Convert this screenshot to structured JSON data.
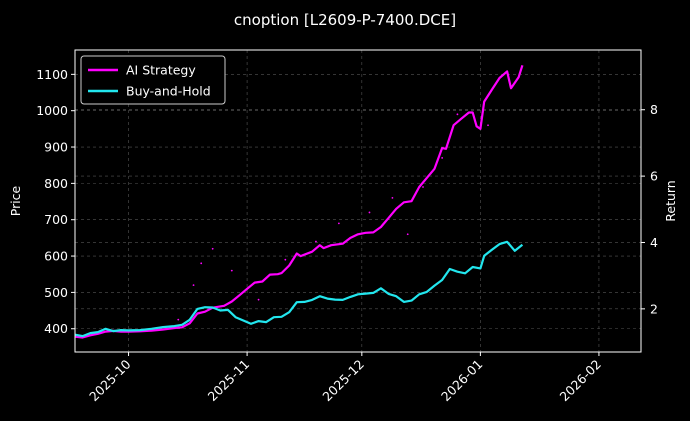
{
  "chart_data": {
    "type": "line",
    "title": "cnoption [L2609-P-7400.DCE]",
    "ylabel_left": "Price",
    "ylabel_right": "Return",
    "grid": true,
    "legend_position": "top-left",
    "x_ticks": [
      "2025-10",
      "2025-11",
      "2025-12",
      "2026-01",
      "2026-02"
    ],
    "xlim": [
      "2025-09-17",
      "2026-02-12"
    ],
    "ylim_left": [
      336,
      1167
    ],
    "ylim_right": [
      0.7,
      9.8
    ],
    "y_ticks_left": [
      400,
      500,
      600,
      700,
      800,
      900,
      1000,
      1100
    ],
    "y_ticks_right": [
      2,
      4,
      6,
      8
    ],
    "colors": {
      "ai": "#ff00ff",
      "bh": "#22e6ee",
      "grid": "#555555",
      "axes": "#ffffff",
      "background": "#000000"
    },
    "series": [
      {
        "name": "AI Strategy",
        "color": "#ff00ff",
        "axis": "left",
        "points": [
          [
            "2025-09-17",
            378
          ],
          [
            "2025-09-19",
            376
          ],
          [
            "2025-09-21",
            382
          ],
          [
            "2025-09-23",
            386
          ],
          [
            "2025-09-25",
            392
          ],
          [
            "2025-09-27",
            394
          ],
          [
            "2025-09-29",
            392
          ],
          [
            "2025-10-01",
            392
          ],
          [
            "2025-10-04",
            393
          ],
          [
            "2025-10-07",
            395
          ],
          [
            "2025-10-10",
            398
          ],
          [
            "2025-10-13",
            402
          ],
          [
            "2025-10-15",
            404
          ],
          [
            "2025-10-17",
            415
          ],
          [
            "2025-10-19",
            442
          ],
          [
            "2025-10-21",
            447
          ],
          [
            "2025-10-23",
            458
          ],
          [
            "2025-10-26",
            463
          ],
          [
            "2025-10-28",
            475
          ],
          [
            "2025-10-30",
            492
          ],
          [
            "2025-11-01",
            510
          ],
          [
            "2025-11-03",
            527
          ],
          [
            "2025-11-05",
            530
          ],
          [
            "2025-11-07",
            549
          ],
          [
            "2025-11-09",
            550
          ],
          [
            "2025-11-10",
            553
          ],
          [
            "2025-11-12",
            574
          ],
          [
            "2025-11-14",
            607
          ],
          [
            "2025-11-15",
            600
          ],
          [
            "2025-11-18",
            612
          ],
          [
            "2025-11-20",
            630
          ],
          [
            "2025-11-21",
            622
          ],
          [
            "2025-11-23",
            630
          ],
          [
            "2025-11-26",
            634
          ],
          [
            "2025-11-28",
            650
          ],
          [
            "2025-11-30",
            660
          ],
          [
            "2025-12-02",
            664
          ],
          [
            "2025-12-04",
            665
          ],
          [
            "2025-12-06",
            680
          ],
          [
            "2025-12-08",
            705
          ],
          [
            "2025-12-10",
            730
          ],
          [
            "2025-12-12",
            748
          ],
          [
            "2025-12-14",
            751
          ],
          [
            "2025-12-16",
            790
          ],
          [
            "2025-12-18",
            815
          ],
          [
            "2025-12-20",
            840
          ],
          [
            "2025-12-22",
            897
          ],
          [
            "2025-12-23",
            895
          ],
          [
            "2025-12-25",
            960
          ],
          [
            "2025-12-27",
            978
          ],
          [
            "2025-12-29",
            995
          ],
          [
            "2025-12-30",
            995
          ],
          [
            "2025-12-31",
            957
          ],
          [
            "2026-01-01",
            950
          ],
          [
            "2026-01-02",
            1025
          ],
          [
            "2026-01-04",
            1058
          ],
          [
            "2026-01-06",
            1090
          ],
          [
            "2026-01-08",
            1108
          ],
          [
            "2026-01-09",
            1062
          ],
          [
            "2026-01-11",
            1092
          ],
          [
            "2026-01-12",
            1125
          ]
        ]
      },
      {
        "name": "Buy-and-Hold",
        "color": "#22e6ee",
        "axis": "right",
        "points": [
          [
            "2025-09-17",
            1.22
          ],
          [
            "2025-09-19",
            1.18
          ],
          [
            "2025-09-21",
            1.27
          ],
          [
            "2025-09-23",
            1.3
          ],
          [
            "2025-09-25",
            1.4
          ],
          [
            "2025-09-27",
            1.33
          ],
          [
            "2025-09-29",
            1.36
          ],
          [
            "2025-10-01",
            1.35
          ],
          [
            "2025-10-04",
            1.36
          ],
          [
            "2025-10-07",
            1.4
          ],
          [
            "2025-10-10",
            1.45
          ],
          [
            "2025-10-13",
            1.48
          ],
          [
            "2025-10-15",
            1.52
          ],
          [
            "2025-10-17",
            1.67
          ],
          [
            "2025-10-19",
            2.0
          ],
          [
            "2025-10-21",
            2.05
          ],
          [
            "2025-10-23",
            2.04
          ],
          [
            "2025-10-25",
            1.95
          ],
          [
            "2025-10-27",
            1.97
          ],
          [
            "2025-10-29",
            1.75
          ],
          [
            "2025-10-31",
            1.65
          ],
          [
            "2025-11-02",
            1.55
          ],
          [
            "2025-11-04",
            1.63
          ],
          [
            "2025-11-06",
            1.6
          ],
          [
            "2025-11-08",
            1.75
          ],
          [
            "2025-11-10",
            1.76
          ],
          [
            "2025-11-12",
            1.9
          ],
          [
            "2025-11-14",
            2.2
          ],
          [
            "2025-11-16",
            2.21
          ],
          [
            "2025-11-18",
            2.27
          ],
          [
            "2025-11-20",
            2.38
          ],
          [
            "2025-11-22",
            2.31
          ],
          [
            "2025-11-24",
            2.28
          ],
          [
            "2025-11-26",
            2.27
          ],
          [
            "2025-11-28",
            2.36
          ],
          [
            "2025-11-30",
            2.44
          ],
          [
            "2025-12-02",
            2.46
          ],
          [
            "2025-12-04",
            2.48
          ],
          [
            "2025-12-06",
            2.62
          ],
          [
            "2025-12-08",
            2.45
          ],
          [
            "2025-12-10",
            2.38
          ],
          [
            "2025-12-12",
            2.21
          ],
          [
            "2025-12-14",
            2.25
          ],
          [
            "2025-12-16",
            2.44
          ],
          [
            "2025-12-18",
            2.51
          ],
          [
            "2025-12-20",
            2.7
          ],
          [
            "2025-12-22",
            2.87
          ],
          [
            "2025-12-24",
            3.2
          ],
          [
            "2025-12-26",
            3.12
          ],
          [
            "2025-12-28",
            3.07
          ],
          [
            "2025-12-30",
            3.26
          ],
          [
            "2026-01-01",
            3.22
          ],
          [
            "2026-01-02",
            3.6
          ],
          [
            "2026-01-04",
            3.78
          ],
          [
            "2026-01-06",
            3.95
          ],
          [
            "2026-01-08",
            4.02
          ],
          [
            "2026-01-10",
            3.75
          ],
          [
            "2026-01-12",
            3.93
          ]
        ]
      }
    ],
    "scatter": {
      "color": "#ff00ff",
      "points": [
        [
          "2025-10-14",
          425
        ],
        [
          "2025-10-18",
          520
        ],
        [
          "2025-10-20",
          580
        ],
        [
          "2025-10-23",
          620
        ],
        [
          "2025-10-28",
          560
        ],
        [
          "2025-11-04",
          480
        ],
        [
          "2025-11-11",
          590
        ],
        [
          "2025-11-19",
          640
        ],
        [
          "2025-11-25",
          690
        ],
        [
          "2025-12-03",
          720
        ],
        [
          "2025-12-09",
          760
        ],
        [
          "2025-12-13",
          660
        ],
        [
          "2025-12-17",
          790
        ],
        [
          "2025-12-22",
          870
        ],
        [
          "2025-12-26",
          990
        ],
        [
          "2026-01-03",
          960
        ]
      ]
    }
  }
}
